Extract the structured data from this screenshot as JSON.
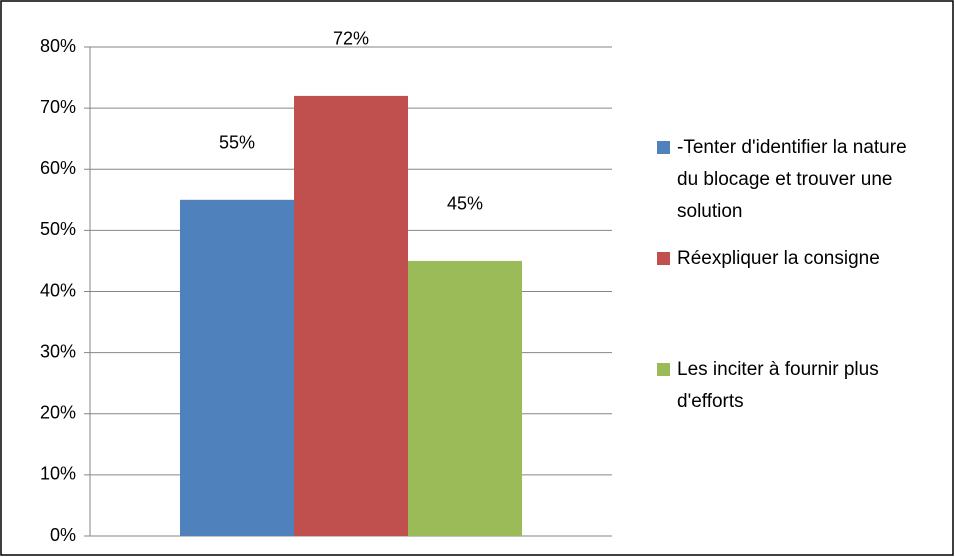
{
  "chart_data": {
    "type": "bar",
    "categories": [
      null
    ],
    "series": [
      {
        "name": "-Tenter d'identifier la nature du blocage et trouver une solution",
        "color": "#4f81bd",
        "values": [
          55
        ],
        "value_labels": [
          "55%"
        ]
      },
      {
        "name": "Réexpliquer la consigne",
        "color": "#c0504d",
        "values": [
          72
        ],
        "value_labels": [
          "72%"
        ]
      },
      {
        "name": "Les inciter à fournir plus d'efforts",
        "color": "#9bbb59",
        "values": [
          45
        ],
        "value_labels": [
          "45%"
        ]
      }
    ],
    "ylim": [
      0,
      80
    ],
    "yticks": [
      {
        "value": 0,
        "label": "0%"
      },
      {
        "value": 10,
        "label": "10%"
      },
      {
        "value": 20,
        "label": "20%"
      },
      {
        "value": 30,
        "label": "30%"
      },
      {
        "value": 40,
        "label": "40%"
      },
      {
        "value": 50,
        "label": "50%"
      },
      {
        "value": 60,
        "label": "60%"
      },
      {
        "value": 70,
        "label": "70%"
      },
      {
        "value": 80,
        "label": "80%"
      }
    ],
    "grid": true,
    "legend": "right"
  }
}
